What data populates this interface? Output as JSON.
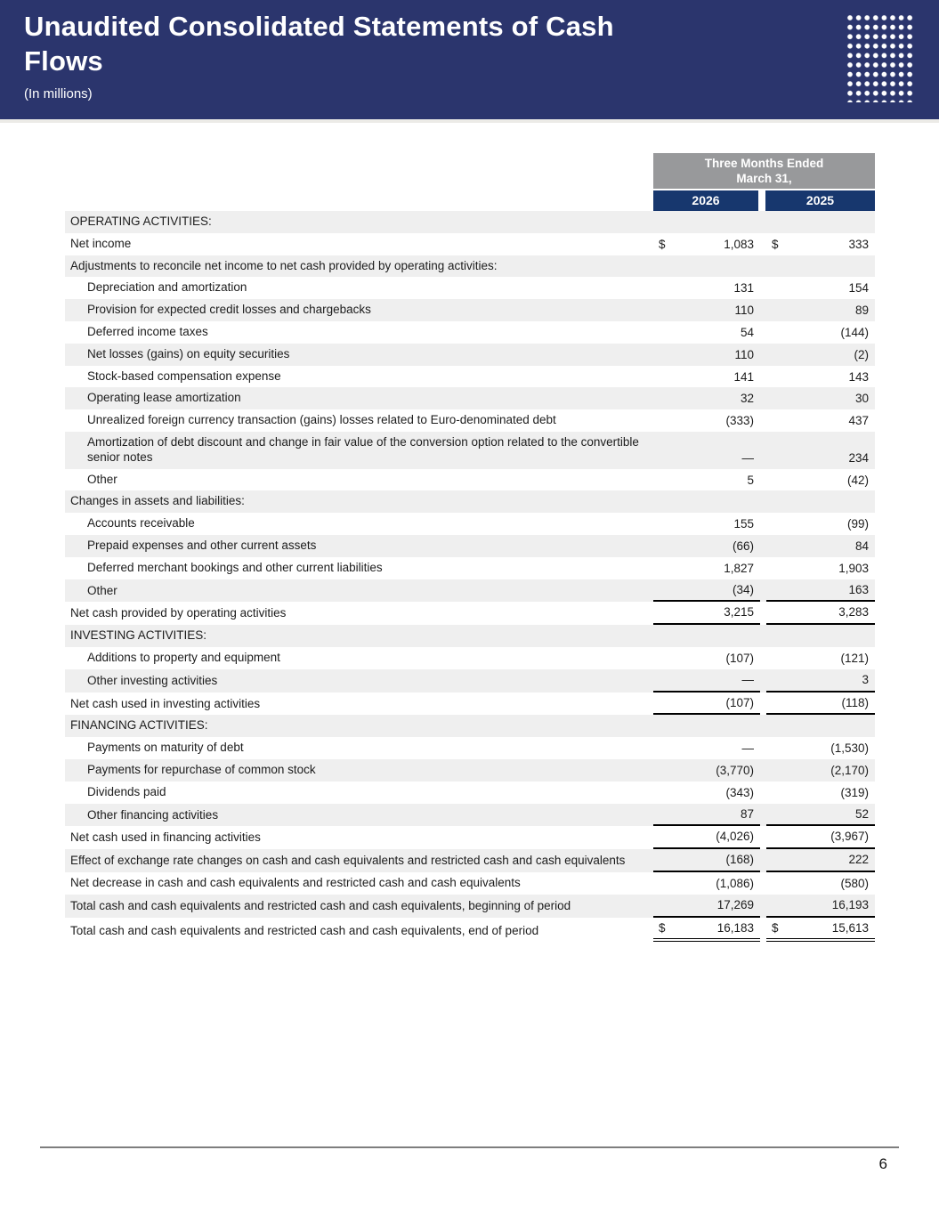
{
  "header": {
    "title_line1": "Unaudited Consolidated Statements of Cash",
    "title_line2": "Flows",
    "subtitle": "(In millions)"
  },
  "table": {
    "period_line1": "Three Months Ended",
    "period_line2": "March 31,",
    "years": [
      "2026",
      "2025"
    ],
    "rows": [
      {
        "label": "OPERATING ACTIVITIES:",
        "ind": 0,
        "d1": "",
        "v1": "",
        "d2": "",
        "v2": "",
        "u": ""
      },
      {
        "label": "Net income",
        "ind": 0,
        "d1": "$",
        "v1": "1,083",
        "d2": "$",
        "v2": "333",
        "u": ""
      },
      {
        "label": "Adjustments to reconcile net income to net cash provided by operating activities:",
        "ind": 0,
        "d1": "",
        "v1": "",
        "d2": "",
        "v2": "",
        "u": ""
      },
      {
        "label": "Depreciation and amortization",
        "ind": 1,
        "d1": "",
        "v1": "131",
        "d2": "",
        "v2": "154",
        "u": ""
      },
      {
        "label": "Provision for expected credit losses and chargebacks",
        "ind": 1,
        "d1": "",
        "v1": "110",
        "d2": "",
        "v2": "89",
        "u": ""
      },
      {
        "label": "Deferred income taxes",
        "ind": 1,
        "d1": "",
        "v1": "54",
        "d2": "",
        "v2": "(144)",
        "u": ""
      },
      {
        "label": "Net losses (gains) on equity securities",
        "ind": 1,
        "d1": "",
        "v1": "110",
        "d2": "",
        "v2": "(2)",
        "u": ""
      },
      {
        "label": "Stock-based compensation expense",
        "ind": 1,
        "d1": "",
        "v1": "141",
        "d2": "",
        "v2": "143",
        "u": ""
      },
      {
        "label": "Operating lease amortization",
        "ind": 1,
        "d1": "",
        "v1": "32",
        "d2": "",
        "v2": "30",
        "u": ""
      },
      {
        "label": "Unrealized foreign currency transaction (gains) losses related to Euro-denominated debt",
        "ind": 1,
        "d1": "",
        "v1": "(333)",
        "d2": "",
        "v2": "437",
        "u": ""
      },
      {
        "label": "Amortization of debt discount and change in fair value of the conversion option related to the convertible senior notes",
        "ind": 1,
        "d1": "",
        "v1": "—",
        "d2": "",
        "v2": "234",
        "u": ""
      },
      {
        "label": "Other",
        "ind": 1,
        "d1": "",
        "v1": "5",
        "d2": "",
        "v2": "(42)",
        "u": ""
      },
      {
        "label": "Changes in assets and liabilities:",
        "ind": 0,
        "d1": "",
        "v1": "",
        "d2": "",
        "v2": "",
        "u": ""
      },
      {
        "label": "Accounts receivable",
        "ind": 1,
        "d1": "",
        "v1": "155",
        "d2": "",
        "v2": "(99)",
        "u": ""
      },
      {
        "label": "Prepaid expenses and other current assets",
        "ind": 1,
        "d1": "",
        "v1": "(66)",
        "d2": "",
        "v2": "84",
        "u": ""
      },
      {
        "label": "Deferred merchant bookings and other current liabilities",
        "ind": 1,
        "d1": "",
        "v1": "1,827",
        "d2": "",
        "v2": "1,903",
        "u": ""
      },
      {
        "label": "Other",
        "ind": 1,
        "d1": "",
        "v1": "(34)",
        "d2": "",
        "v2": "163",
        "u": "s"
      },
      {
        "label": "Net cash provided by operating activities",
        "ind": 0,
        "d1": "",
        "v1": "3,215",
        "d2": "",
        "v2": "3,283",
        "u": "s"
      },
      {
        "label": "INVESTING ACTIVITIES:",
        "ind": 0,
        "d1": "",
        "v1": "",
        "d2": "",
        "v2": "",
        "u": ""
      },
      {
        "label": "Additions to property and equipment",
        "ind": 1,
        "d1": "",
        "v1": "(107)",
        "d2": "",
        "v2": "(121)",
        "u": ""
      },
      {
        "label": "Other investing activities",
        "ind": 1,
        "d1": "",
        "v1": "—",
        "d2": "",
        "v2": "3",
        "u": "s"
      },
      {
        "label": "Net cash used in investing activities",
        "ind": 0,
        "d1": "",
        "v1": "(107)",
        "d2": "",
        "v2": "(118)",
        "u": "s"
      },
      {
        "label": "FINANCING ACTIVITIES:",
        "ind": 0,
        "d1": "",
        "v1": "",
        "d2": "",
        "v2": "",
        "u": ""
      },
      {
        "label": "Payments on maturity of debt",
        "ind": 1,
        "d1": "",
        "v1": "—",
        "d2": "",
        "v2": "(1,530)",
        "u": ""
      },
      {
        "label": "Payments for repurchase of common stock",
        "ind": 1,
        "d1": "",
        "v1": "(3,770)",
        "d2": "",
        "v2": "(2,170)",
        "u": ""
      },
      {
        "label": "Dividends paid",
        "ind": 1,
        "d1": "",
        "v1": "(343)",
        "d2": "",
        "v2": "(319)",
        "u": ""
      },
      {
        "label": "Other financing activities",
        "ind": 1,
        "d1": "",
        "v1": "87",
        "d2": "",
        "v2": "52",
        "u": "s"
      },
      {
        "label": "Net cash used in financing activities",
        "ind": 0,
        "d1": "",
        "v1": "(4,026)",
        "d2": "",
        "v2": "(3,967)",
        "u": "s"
      },
      {
        "label": "Effect of exchange rate changes on cash and cash equivalents and restricted cash and cash equivalents",
        "ind": 0,
        "d1": "",
        "v1": "(168)",
        "d2": "",
        "v2": "222",
        "u": "s"
      },
      {
        "label": "Net decrease in cash and cash equivalents and restricted cash and cash equivalents",
        "ind": 0,
        "d1": "",
        "v1": "(1,086)",
        "d2": "",
        "v2": "(580)",
        "u": ""
      },
      {
        "label": "Total cash and cash equivalents and restricted cash and cash equivalents, beginning of period",
        "ind": 0,
        "d1": "",
        "v1": "17,269",
        "d2": "",
        "v2": "16,193",
        "u": "s"
      },
      {
        "label": "Total cash and cash equivalents and restricted cash and cash equivalents, end of period",
        "ind": 0,
        "d1": "$",
        "v1": "16,183",
        "d2": "$",
        "v2": "15,613",
        "u": "d"
      }
    ]
  },
  "footer": {
    "page_number": "6"
  }
}
